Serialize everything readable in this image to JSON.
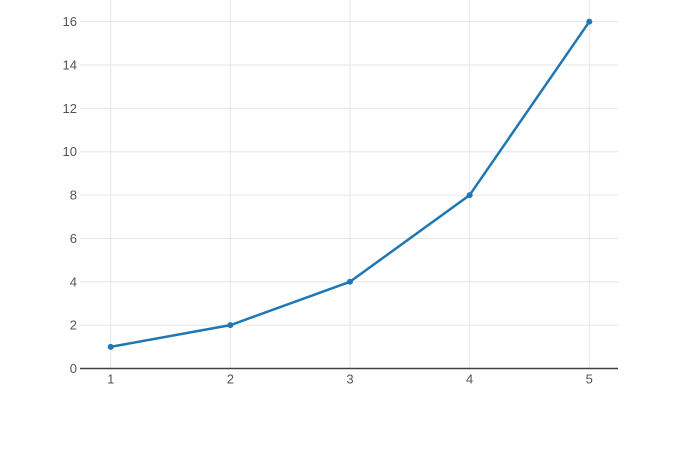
{
  "chart_data": {
    "type": "line",
    "x": [
      1,
      2,
      3,
      4,
      5
    ],
    "y": [
      1,
      2,
      4,
      8,
      16
    ],
    "xticks": [
      1,
      2,
      3,
      4,
      5
    ],
    "xtick_labels": [
      "1",
      "2",
      "3",
      "4",
      "5"
    ],
    "yticks": [
      0,
      2,
      4,
      6,
      8,
      10,
      12,
      14,
      16
    ],
    "ytick_labels": [
      "0",
      "2",
      "4",
      "6",
      "8",
      "10",
      "12",
      "14",
      "16"
    ],
    "xlim": [
      0.7434,
      5.24
    ],
    "ylim": [
      0,
      17
    ],
    "title": "",
    "xlabel": "",
    "ylabel": "",
    "grid": true,
    "legend": false,
    "colors": {
      "line": "#1f77b4",
      "marker": "#1f77b4",
      "grid": "#e6e6e6",
      "axis_line": "#404040",
      "tick_label": "#545454",
      "background": "#ffffff"
    },
    "marker_size": 6,
    "line_width": 2.5
  }
}
